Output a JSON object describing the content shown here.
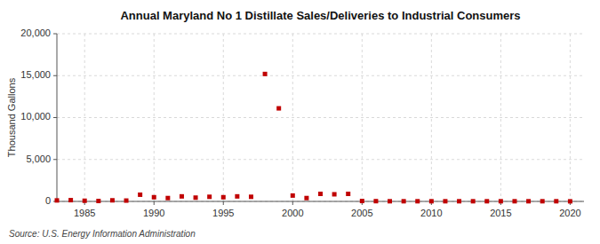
{
  "chart_data": {
    "type": "scatter",
    "title": "Annual Maryland No 1 Distillate Sales/Deliveries to Industrial Consumers",
    "ylabel": "Thousand Gallons",
    "annotations": [
      "Source: U.S. Energy Information Administration"
    ],
    "x": [
      1983,
      1984,
      1985,
      1986,
      1987,
      1988,
      1989,
      1990,
      1991,
      1992,
      1993,
      1994,
      1995,
      1996,
      1997,
      1998,
      1999,
      2000,
      2001,
      2002,
      2003,
      2004,
      2005,
      2006,
      2007,
      2008,
      2009,
      2010,
      2011,
      2012,
      2013,
      2014,
      2015,
      2016,
      2017,
      2018,
      2019,
      2020
    ],
    "values": [
      120,
      150,
      80,
      50,
      130,
      100,
      800,
      500,
      400,
      600,
      450,
      550,
      500,
      600,
      550,
      15200,
      11100,
      700,
      400,
      900,
      850,
      900,
      50,
      30,
      20,
      20,
      20,
      20,
      20,
      20,
      20,
      20,
      20,
      20,
      20,
      20,
      20,
      10
    ],
    "color": "#c00000",
    "marker": "square",
    "xlim": [
      1983,
      2021
    ],
    "ylim": [
      0,
      20000
    ],
    "xticks": [
      1985,
      1990,
      1995,
      2000,
      2005,
      2010,
      2015,
      2020
    ],
    "yticks": [
      0,
      {
        "value": 5000,
        "label": "5,000"
      },
      {
        "value": 10000,
        "label": "10,000"
      },
      {
        "value": 15000,
        "label": "15,000"
      },
      {
        "value": 20000,
        "label": "20,000"
      }
    ],
    "grid": true
  }
}
